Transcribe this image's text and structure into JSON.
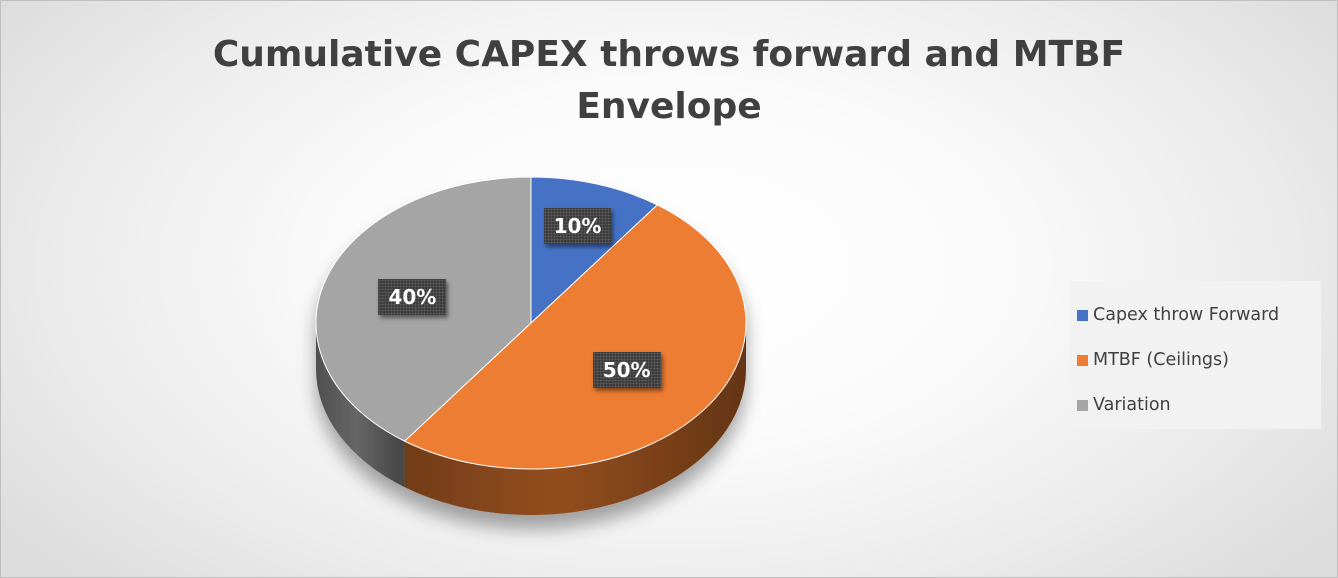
{
  "chart_data": {
    "type": "pie",
    "title_lines": [
      "Cumulative CAPEX throws forward and MTBF",
      "Envelope"
    ],
    "slices": [
      {
        "label": "Capex throw Forward",
        "value": 10,
        "data_label": "10%",
        "color": "#4472c4"
      },
      {
        "label": "MTBF (Ceilings)",
        "value": 50,
        "data_label": "50%",
        "color": "#ed7d31"
      },
      {
        "label": "Variation",
        "value": 40,
        "data_label": "40%",
        "color": "#a5a5a5"
      }
    ],
    "legend_position": "right",
    "three_d": true
  }
}
